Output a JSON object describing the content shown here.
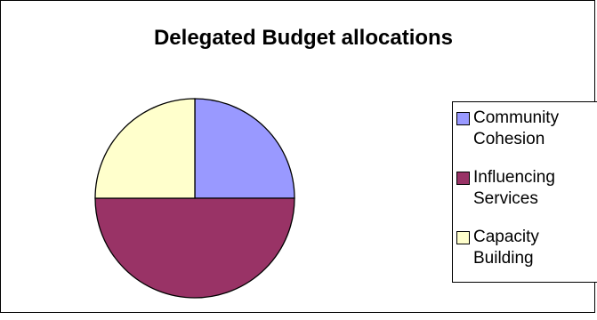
{
  "chart_data": {
    "type": "pie",
    "title": "Delegated Budget allocations",
    "categories": [
      "Community Cohesion",
      "Influencing Services",
      "Capacity Building"
    ],
    "values": [
      25,
      50,
      25
    ],
    "colors": [
      "#9999ff",
      "#993366",
      "#ffffcc"
    ],
    "legend_placement": "right",
    "legend": [
      {
        "line1": "Community",
        "line2": "Cohesion",
        "color": "#9999ff"
      },
      {
        "line1": "Influencing",
        "line2": "Services",
        "color": "#993366"
      },
      {
        "line1": "Capacity",
        "line2": "Building",
        "color": "#ffffcc"
      }
    ]
  }
}
